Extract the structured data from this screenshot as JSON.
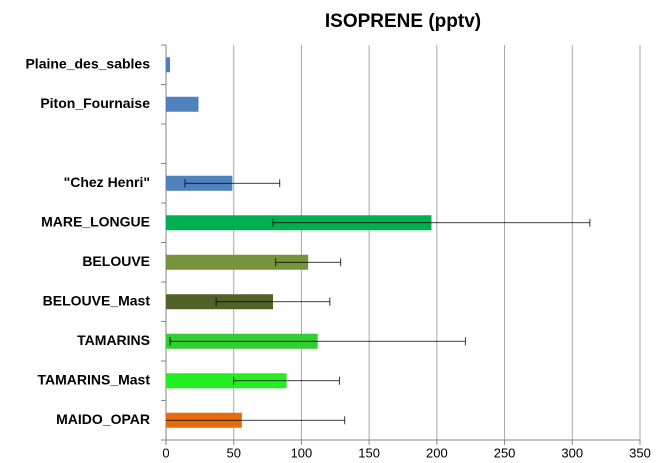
{
  "chart_data": {
    "type": "bar",
    "orientation": "horizontal",
    "title": "ISOPRENE (pptv)",
    "categories": [
      "Plaine_des_sables",
      "Piton_Fournaise",
      null,
      "\"Chez Henri\"",
      "MARE_LONGUE",
      "BELOUVE",
      "BELOUVE_Mast",
      "TAMARINS",
      "TAMARINS_Mast",
      "MAIDO_OPAR"
    ],
    "values": [
      3,
      24,
      null,
      49,
      196,
      105,
      79,
      112,
      89,
      56
    ],
    "errors": [
      null,
      null,
      null,
      35,
      117,
      24,
      42,
      109,
      39,
      76
    ],
    "colors": [
      "#4f81bd",
      "#4f81bd",
      null,
      "#4f81bd",
      "#00b050",
      "#77933c",
      "#4f6228",
      "#33cc33",
      "#22ee22",
      "#e46c0a"
    ],
    "xlim": [
      0,
      350
    ],
    "xticks": [
      0,
      50,
      100,
      150,
      200,
      250,
      300,
      350
    ],
    "grid": true
  }
}
